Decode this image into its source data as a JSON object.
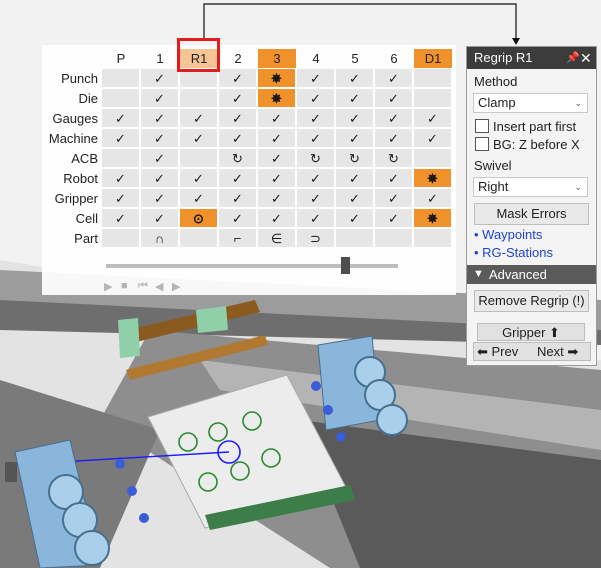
{
  "grid": {
    "columns": [
      {
        "label": "P",
        "style": "plain"
      },
      {
        "label": "1",
        "style": "plain"
      },
      {
        "label": "R1",
        "style": "selected"
      },
      {
        "label": "2",
        "style": "plain"
      },
      {
        "label": "3",
        "style": "orange"
      },
      {
        "label": "4",
        "style": "plain"
      },
      {
        "label": "5",
        "style": "plain"
      },
      {
        "label": "6",
        "style": "plain"
      },
      {
        "label": "D1",
        "style": "orange"
      }
    ],
    "rows": [
      {
        "label": "Punch",
        "cells": [
          "",
          "✓",
          "",
          "✓",
          "✸",
          "✓",
          "✓",
          "✓",
          ""
        ]
      },
      {
        "label": "Die",
        "cells": [
          "",
          "✓",
          "",
          "✓",
          "✸",
          "✓",
          "✓",
          "✓",
          ""
        ]
      },
      {
        "label": "Gauges",
        "cells": [
          "✓",
          "✓",
          "✓",
          "✓",
          "✓",
          "✓",
          "✓",
          "✓",
          "✓"
        ]
      },
      {
        "label": "Machine",
        "cells": [
          "✓",
          "✓",
          "✓",
          "✓",
          "✓",
          "✓",
          "✓",
          "✓",
          "✓"
        ]
      },
      {
        "label": "ACB",
        "cells": [
          "",
          "✓",
          "",
          "↻",
          "✓",
          "↻",
          "↻",
          "↻",
          ""
        ]
      },
      {
        "label": "Robot",
        "cells": [
          "✓",
          "✓",
          "✓",
          "✓",
          "✓",
          "✓",
          "✓",
          "✓",
          "✸"
        ]
      },
      {
        "label": "Gripper",
        "cells": [
          "✓",
          "✓",
          "✓",
          "✓",
          "✓",
          "✓",
          "✓",
          "✓",
          "✓"
        ]
      },
      {
        "label": "Cell",
        "cells": [
          "✓",
          "✓",
          "⊙",
          "✓",
          "✓",
          "✓",
          "✓",
          "✓",
          "✸"
        ]
      },
      {
        "label": "Part",
        "cells": [
          "",
          "∩",
          "",
          "⌐",
          "∈",
          "⊃",
          "",
          "",
          ""
        ]
      }
    ],
    "alerts": [
      [
        0,
        4
      ],
      [
        1,
        4
      ],
      [
        5,
        8
      ],
      [
        7,
        2
      ],
      [
        7,
        8
      ]
    ],
    "playback": {
      "position": 0.82
    },
    "controls": [
      "▶",
      "■",
      "⏮",
      "◀",
      "▶"
    ]
  },
  "panel": {
    "title": "Regrip R1",
    "pin_icon": "pin-icon",
    "close_icon": "close-icon",
    "method_label": "Method",
    "method_value": "Clamp",
    "insert_part_first": "Insert part first",
    "bg_z_before_x": "BG: Z before X",
    "swivel_label": "Swivel",
    "swivel_value": "Right",
    "mask_errors": "Mask Errors",
    "waypoints_link": "• Waypoints",
    "rg_stations_link": "• RG-Stations",
    "advanced": "Advanced",
    "remove_regrip": "Remove Regrip (!)",
    "gripper_tab": "Gripper ⬆",
    "prev": "⬅ Prev",
    "next": "Next ➡"
  },
  "colors": {
    "orange": "#f0922c",
    "selected_header": "#f5c596",
    "highlight_box": "#e21d1d",
    "link": "#1f44d0",
    "hole_green": "#2a8a2a",
    "path_blue": "#1c1cff",
    "panel_header": "#3c3c3c"
  }
}
